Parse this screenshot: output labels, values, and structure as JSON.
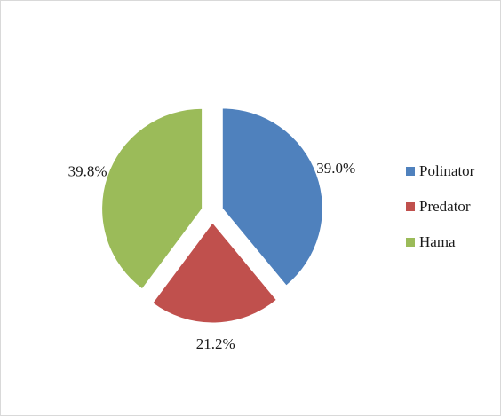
{
  "chart_data": {
    "type": "pie",
    "categories": [
      "Polinator",
      "Predator",
      "Hama"
    ],
    "values": [
      39.0,
      21.2,
      39.8
    ],
    "value_labels": [
      "39.0%",
      "21.2%",
      "39.8%"
    ],
    "colors": [
      "#4f81bd",
      "#c0504d",
      "#9bbb59"
    ],
    "exploded": true,
    "start_angle": "12 o'clock, clockwise",
    "title": "",
    "legend_position": "right"
  }
}
